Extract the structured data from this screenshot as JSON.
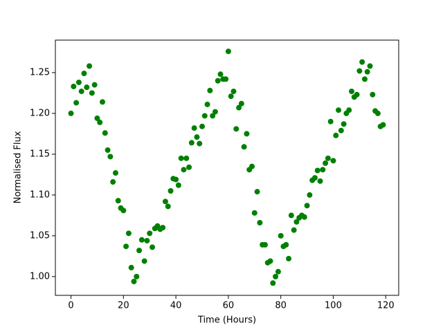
{
  "chart_data": {
    "type": "scatter",
    "xlabel": "Time (Hours)",
    "ylabel": "Normalised Flux",
    "color": "#008000",
    "grid": false,
    "xlim": [
      -5.95,
      124.95
    ],
    "xticks": [
      0,
      20,
      40,
      60,
      80,
      100,
      120
    ],
    "ylim": [
      0.977,
      1.2898
    ],
    "yticks": [
      {
        "value": 1,
        "label": "1.00"
      },
      1.05,
      {
        "value": 1.1,
        "label": "1.10"
      },
      1.15,
      {
        "value": 1.2,
        "label": "1.20"
      },
      1.25
    ],
    "x": [
      0,
      1,
      2,
      3,
      4,
      5,
      6,
      7,
      8,
      9,
      10,
      11,
      12,
      13,
      14,
      15,
      16,
      17,
      18,
      19,
      20,
      21,
      22,
      23,
      24,
      25,
      26,
      27,
      28,
      29,
      30,
      31,
      32,
      33,
      34,
      35,
      36,
      37,
      38,
      39,
      40,
      41,
      42,
      43,
      44,
      45,
      46,
      47,
      48,
      49,
      50,
      51,
      52,
      53,
      54,
      55,
      56,
      57,
      58,
      59,
      60,
      61,
      62,
      63,
      64,
      65,
      66,
      67,
      68,
      69,
      70,
      71,
      72,
      73,
      74,
      75,
      76,
      77,
      78,
      79,
      80,
      81,
      82,
      83,
      84,
      85,
      86,
      87,
      88,
      89,
      90,
      91,
      92,
      93,
      94,
      95,
      96,
      97,
      98,
      99,
      100,
      101,
      102,
      103,
      104,
      105,
      106,
      107,
      108,
      109,
      110,
      111,
      112,
      113,
      114,
      115,
      116,
      117,
      118,
      119
    ],
    "values": [
      1.2,
      1.233,
      1.213,
      1.238,
      1.227,
      1.249,
      1.232,
      1.258,
      1.225,
      1.235,
      1.194,
      1.189,
      1.214,
      1.176,
      1.155,
      1.147,
      1.116,
      1.127,
      1.093,
      1.084,
      1.081,
      1.037,
      1.053,
      1.011,
      0.994,
      1.0,
      1.032,
      1.045,
      1.019,
      1.044,
      1.053,
      1.036,
      1.059,
      1.062,
      1.058,
      1.06,
      1.092,
      1.086,
      1.105,
      1.12,
      1.119,
      1.112,
      1.145,
      1.131,
      1.145,
      1.134,
      1.164,
      1.182,
      1.171,
      1.163,
      1.184,
      1.197,
      1.211,
      1.228,
      1.197,
      1.202,
      1.24,
      1.248,
      1.242,
      1.242,
      1.276,
      1.221,
      1.227,
      1.181,
      1.207,
      1.212,
      1.159,
      1.175,
      1.131,
      1.135,
      1.078,
      1.104,
      1.066,
      1.039,
      1.039,
      1.017,
      1.019,
      0.992,
      1.0,
      1.006,
      1.05,
      1.037,
      1.039,
      1.022,
      1.075,
      1.057,
      1.067,
      1.072,
      1.075,
      1.073,
      1.087,
      1.1,
      1.118,
      1.121,
      1.13,
      1.117,
      1.131,
      1.139,
      1.145,
      1.19,
      1.142,
      1.173,
      1.204,
      1.179,
      1.187,
      1.2,
      1.204,
      1.227,
      1.22,
      1.223,
      1.252,
      1.263,
      1.242,
      1.251,
      1.258,
      1.223,
      1.203,
      1.2,
      1.184,
      1.186
    ]
  }
}
